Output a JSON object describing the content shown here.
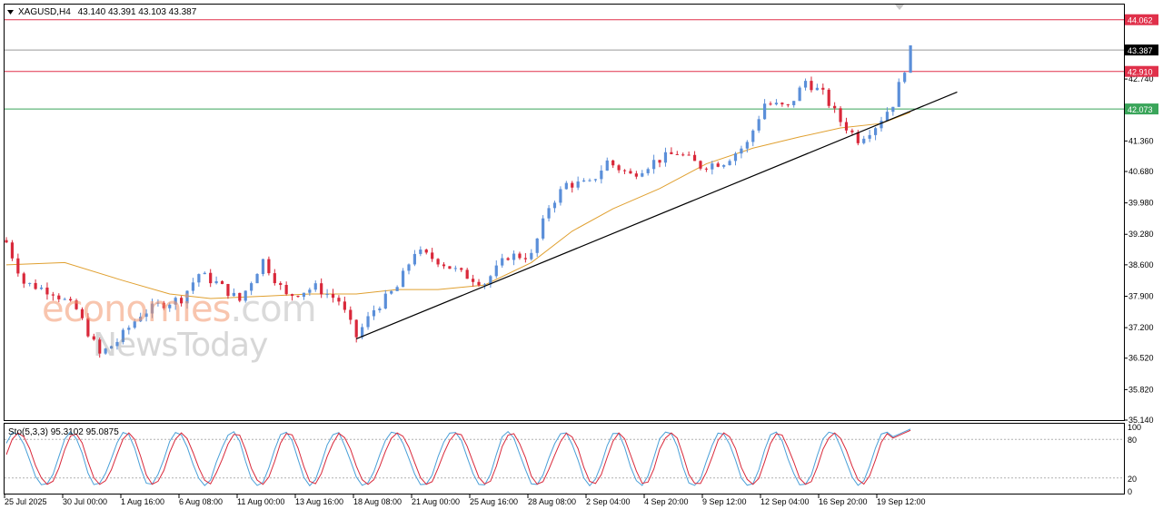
{
  "chart_data": {
    "type": "candlestick",
    "symbol_header": "XAGUSD,H4",
    "ohlc_header": "43.140 43.391 43.103 43.387",
    "price_axis": {
      "range": [
        35.14,
        44.4
      ],
      "tick_labels": [
        "42.740",
        "41.360",
        "40.680",
        "39.980",
        "39.280",
        "38.600",
        "37.900",
        "37.200",
        "36.520",
        "35.820",
        "35.140"
      ],
      "tick_values": [
        42.74,
        41.36,
        40.68,
        39.98,
        39.28,
        38.6,
        37.9,
        37.2,
        36.52,
        35.82,
        35.14
      ]
    },
    "horizontal_lines": [
      {
        "value": 44.062,
        "label": "44.062",
        "color": "#e0304a"
      },
      {
        "value": 43.387,
        "label": "43.387",
        "color": "#9a9a9a",
        "current_price": true
      },
      {
        "value": 42.91,
        "label": "42.910",
        "color": "#e0304a"
      },
      {
        "value": 42.073,
        "label": "42.073",
        "color": "#3aa55a"
      }
    ],
    "time_labels": [
      "25 Jul 2025",
      "30 Jul 00:00",
      "1 Aug 16:00",
      "6 Aug 08:00",
      "11 Aug 00:00",
      "13 Aug 16:00",
      "18 Aug 08:00",
      "21 Aug 00:00",
      "25 Aug 16:00",
      "28 Aug 08:00",
      "2 Sep 04:00",
      "4 Sep 20:00",
      "9 Sep 12:00",
      "12 Sep 04:00",
      "16 Sep 20:00",
      "19 Sep 12:00"
    ],
    "close_path": [
      [
        0,
        39.1
      ],
      [
        3,
        38.2
      ],
      [
        8,
        38.0
      ],
      [
        12,
        37.6
      ],
      [
        16,
        36.6
      ],
      [
        19,
        36.9
      ],
      [
        23,
        37.5
      ],
      [
        26,
        37.7
      ],
      [
        30,
        37.85
      ],
      [
        33,
        38.4
      ],
      [
        36,
        38.2
      ],
      [
        40,
        37.8
      ],
      [
        44,
        38.7
      ],
      [
        48,
        37.9
      ],
      [
        53,
        38.1
      ],
      [
        57,
        37.8
      ],
      [
        60,
        37.0
      ],
      [
        63,
        37.6
      ],
      [
        67,
        38.1
      ],
      [
        70,
        38.9
      ],
      [
        74,
        38.7
      ],
      [
        78,
        38.4
      ],
      [
        82,
        38.2
      ],
      [
        86,
        38.8
      ],
      [
        90,
        38.8
      ],
      [
        93,
        39.9
      ],
      [
        96,
        40.4
      ],
      [
        100,
        40.4
      ],
      [
        103,
        40.9
      ],
      [
        107,
        40.6
      ],
      [
        111,
        40.9
      ],
      [
        115,
        41.1
      ],
      [
        119,
        40.8
      ],
      [
        123,
        40.9
      ],
      [
        127,
        41.3
      ],
      [
        130,
        42.2
      ],
      [
        134,
        42.1
      ],
      [
        137,
        42.7
      ],
      [
        140,
        42.4
      ],
      [
        143,
        41.8
      ],
      [
        146,
        41.4
      ],
      [
        149,
        41.7
      ],
      [
        152,
        42.2
      ],
      [
        155,
        43.38
      ]
    ],
    "moving_average": [
      [
        0,
        38.6
      ],
      [
        10,
        38.65
      ],
      [
        20,
        38.25
      ],
      [
        28,
        37.95
      ],
      [
        35,
        37.85
      ],
      [
        44,
        37.9
      ],
      [
        52,
        37.95
      ],
      [
        60,
        37.95
      ],
      [
        67,
        38.05
      ],
      [
        74,
        38.05
      ],
      [
        82,
        38.15
      ],
      [
        90,
        38.65
      ],
      [
        97,
        39.35
      ],
      [
        104,
        39.85
      ],
      [
        112,
        40.3
      ],
      [
        120,
        40.85
      ],
      [
        128,
        41.2
      ],
      [
        136,
        41.45
      ],
      [
        143,
        41.65
      ],
      [
        150,
        41.75
      ],
      [
        155,
        42.0
      ]
    ],
    "trendline": {
      "from": [
        60,
        36.95
      ],
      "to": [
        163,
        42.45
      ]
    },
    "stochastic": {
      "label": "Sto(5,3,3) 95.3102 95.0875",
      "main": 95.3102,
      "signal": 95.0875,
      "levels": [
        20,
        80
      ],
      "axis_labels": [
        "100",
        "80",
        "20",
        "0"
      ]
    }
  },
  "watermark": {
    "line1_a": "economies",
    "line1_b": ".com",
    "line2": "NewsToday"
  }
}
